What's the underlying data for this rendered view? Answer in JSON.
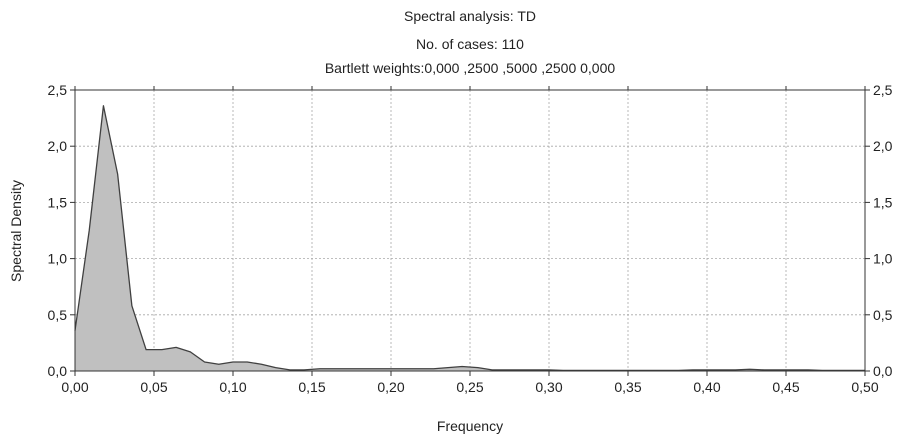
{
  "chart_data": {
    "type": "area",
    "title": "Spectral analysis: TD",
    "subtitle_lines": [
      "No. of cases: 110",
      "Bartlett weights:0,000 ,2500 ,5000 ,2500 0,000"
    ],
    "xlabel": "Frequency",
    "ylabel": "Spectral Density",
    "xlim": [
      0,
      0.5
    ],
    "ylim": [
      0,
      2.5
    ],
    "x_ticks": [
      0,
      0.05,
      0.1,
      0.15,
      0.2,
      0.25,
      0.3,
      0.35,
      0.4,
      0.45,
      0.5
    ],
    "x_tick_labels": [
      "0,00",
      "0,05",
      "0,10",
      "0,15",
      "0,20",
      "0,25",
      "0,30",
      "0,35",
      "0,40",
      "0,45",
      "0,50"
    ],
    "y_ticks": [
      0,
      0.5,
      1,
      1.5,
      2,
      2.5
    ],
    "y_tick_labels": [
      "0,0",
      "0,5",
      "1,0",
      "1,5",
      "2,0",
      "2,5"
    ],
    "grid": true,
    "fill_color": "#c0c0c0",
    "line_color": "#404040",
    "series": [
      {
        "x": [
          0,
          0.009,
          0.018,
          0.027,
          0.036,
          0.045,
          0.055,
          0.064,
          0.073,
          0.082,
          0.091,
          0.1,
          0.109,
          0.118,
          0.127,
          0.136,
          0.145,
          0.155,
          0.164,
          0.173,
          0.182,
          0.191,
          0.2,
          0.209,
          0.218,
          0.227,
          0.236,
          0.245,
          0.255,
          0.264,
          0.273,
          0.282,
          0.291,
          0.3,
          0.309,
          0.318,
          0.327,
          0.336,
          0.345,
          0.355,
          0.364,
          0.373,
          0.382,
          0.391,
          0.4,
          0.409,
          0.418,
          0.427,
          0.436,
          0.445,
          0.455,
          0.464,
          0.473,
          0.482,
          0.491,
          0.5
        ],
        "values": [
          0.36,
          1.25,
          2.36,
          1.75,
          0.58,
          0.19,
          0.19,
          0.21,
          0.17,
          0.08,
          0.06,
          0.08,
          0.08,
          0.06,
          0.03,
          0.01,
          0.01,
          0.02,
          0.02,
          0.02,
          0.02,
          0.02,
          0.02,
          0.02,
          0.02,
          0.02,
          0.03,
          0.04,
          0.03,
          0.01,
          0.01,
          0.01,
          0.01,
          0.01,
          0.005,
          0.005,
          0.005,
          0.005,
          0.005,
          0.005,
          0.005,
          0.005,
          0.005,
          0.01,
          0.01,
          0.01,
          0.01,
          0.015,
          0.01,
          0.01,
          0.01,
          0.01,
          0.005,
          0.005,
          0.005,
          0.005
        ]
      }
    ]
  }
}
